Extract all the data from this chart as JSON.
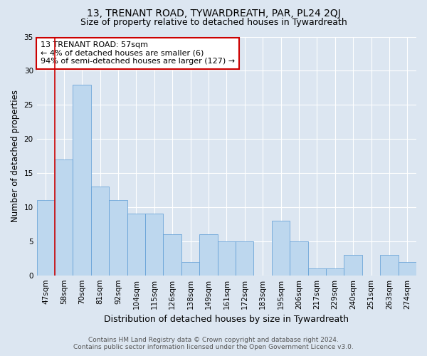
{
  "title": "13, TRENANT ROAD, TYWARDREATH, PAR, PL24 2QJ",
  "subtitle": "Size of property relative to detached houses in Tywardreath",
  "xlabel": "Distribution of detached houses by size in Tywardreath",
  "ylabel": "Number of detached properties",
  "categories": [
    "47sqm",
    "58sqm",
    "70sqm",
    "81sqm",
    "92sqm",
    "104sqm",
    "115sqm",
    "126sqm",
    "138sqm",
    "149sqm",
    "161sqm",
    "172sqm",
    "183sqm",
    "195sqm",
    "206sqm",
    "217sqm",
    "229sqm",
    "240sqm",
    "251sqm",
    "263sqm",
    "274sqm"
  ],
  "values": [
    11,
    17,
    28,
    13,
    11,
    9,
    9,
    6,
    2,
    6,
    5,
    5,
    0,
    8,
    5,
    1,
    1,
    3,
    0,
    3,
    2
  ],
  "bar_color": "#bdd7ee",
  "bar_edge_color": "#5b9bd5",
  "highlight_index": 1,
  "highlight_line_color": "#cc0000",
  "annotation_text": "13 TRENANT ROAD: 57sqm\n← 4% of detached houses are smaller (6)\n94% of semi-detached houses are larger (127) →",
  "annotation_box_color": "#ffffff",
  "annotation_box_edge_color": "#cc0000",
  "ylim": [
    0,
    35
  ],
  "yticks": [
    0,
    5,
    10,
    15,
    20,
    25,
    30,
    35
  ],
  "background_color": "#dce6f1",
  "plot_bg_color": "#dce6f1",
  "footer_line1": "Contains HM Land Registry data © Crown copyright and database right 2024.",
  "footer_line2": "Contains public sector information licensed under the Open Government Licence v3.0.",
  "title_fontsize": 10,
  "subtitle_fontsize": 9,
  "xlabel_fontsize": 9,
  "ylabel_fontsize": 8.5,
  "tick_fontsize": 7.5,
  "annotation_fontsize": 8,
  "footer_fontsize": 6.5
}
